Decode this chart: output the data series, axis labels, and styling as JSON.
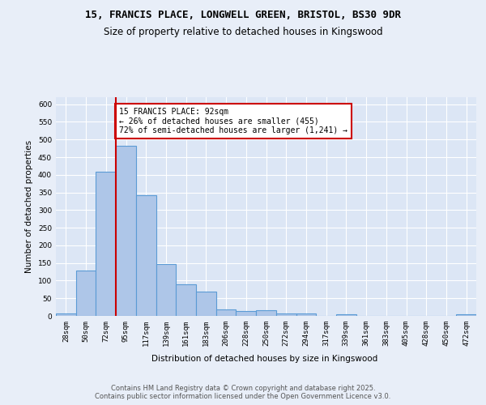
{
  "title_line1": "15, FRANCIS PLACE, LONGWELL GREEN, BRISTOL, BS30 9DR",
  "title_line2": "Size of property relative to detached houses in Kingswood",
  "xlabel": "Distribution of detached houses by size in Kingswood",
  "ylabel": "Number of detached properties",
  "categories": [
    "28sqm",
    "50sqm",
    "72sqm",
    "95sqm",
    "117sqm",
    "139sqm",
    "161sqm",
    "183sqm",
    "206sqm",
    "228sqm",
    "250sqm",
    "272sqm",
    "294sqm",
    "317sqm",
    "339sqm",
    "361sqm",
    "383sqm",
    "405sqm",
    "428sqm",
    "450sqm",
    "472sqm"
  ],
  "values": [
    8,
    128,
    408,
    482,
    342,
    148,
    90,
    70,
    18,
    14,
    15,
    7,
    7,
    0,
    4,
    0,
    0,
    0,
    0,
    0,
    5
  ],
  "bar_color": "#aec6e8",
  "bar_edge_color": "#5b9bd5",
  "bar_edge_width": 0.8,
  "vline_x": 2.5,
  "vline_color": "#cc0000",
  "annotation_text": "15 FRANCIS PLACE: 92sqm\n← 26% of detached houses are smaller (455)\n72% of semi-detached houses are larger (1,241) →",
  "annotation_box_color": "#cc0000",
  "annotation_text_color": "#000000",
  "ylim": [
    0,
    620
  ],
  "yticks": [
    0,
    50,
    100,
    150,
    200,
    250,
    300,
    350,
    400,
    450,
    500,
    550,
    600
  ],
  "background_color": "#e8eef8",
  "plot_background_color": "#dce6f5",
  "grid_color": "#ffffff",
  "footnote": "Contains HM Land Registry data © Crown copyright and database right 2025.\nContains public sector information licensed under the Open Government Licence v3.0.",
  "title_fontsize": 9,
  "subtitle_fontsize": 8.5,
  "axis_label_fontsize": 7.5,
  "tick_fontsize": 6.5,
  "annotation_fontsize": 7,
  "footnote_fontsize": 6
}
